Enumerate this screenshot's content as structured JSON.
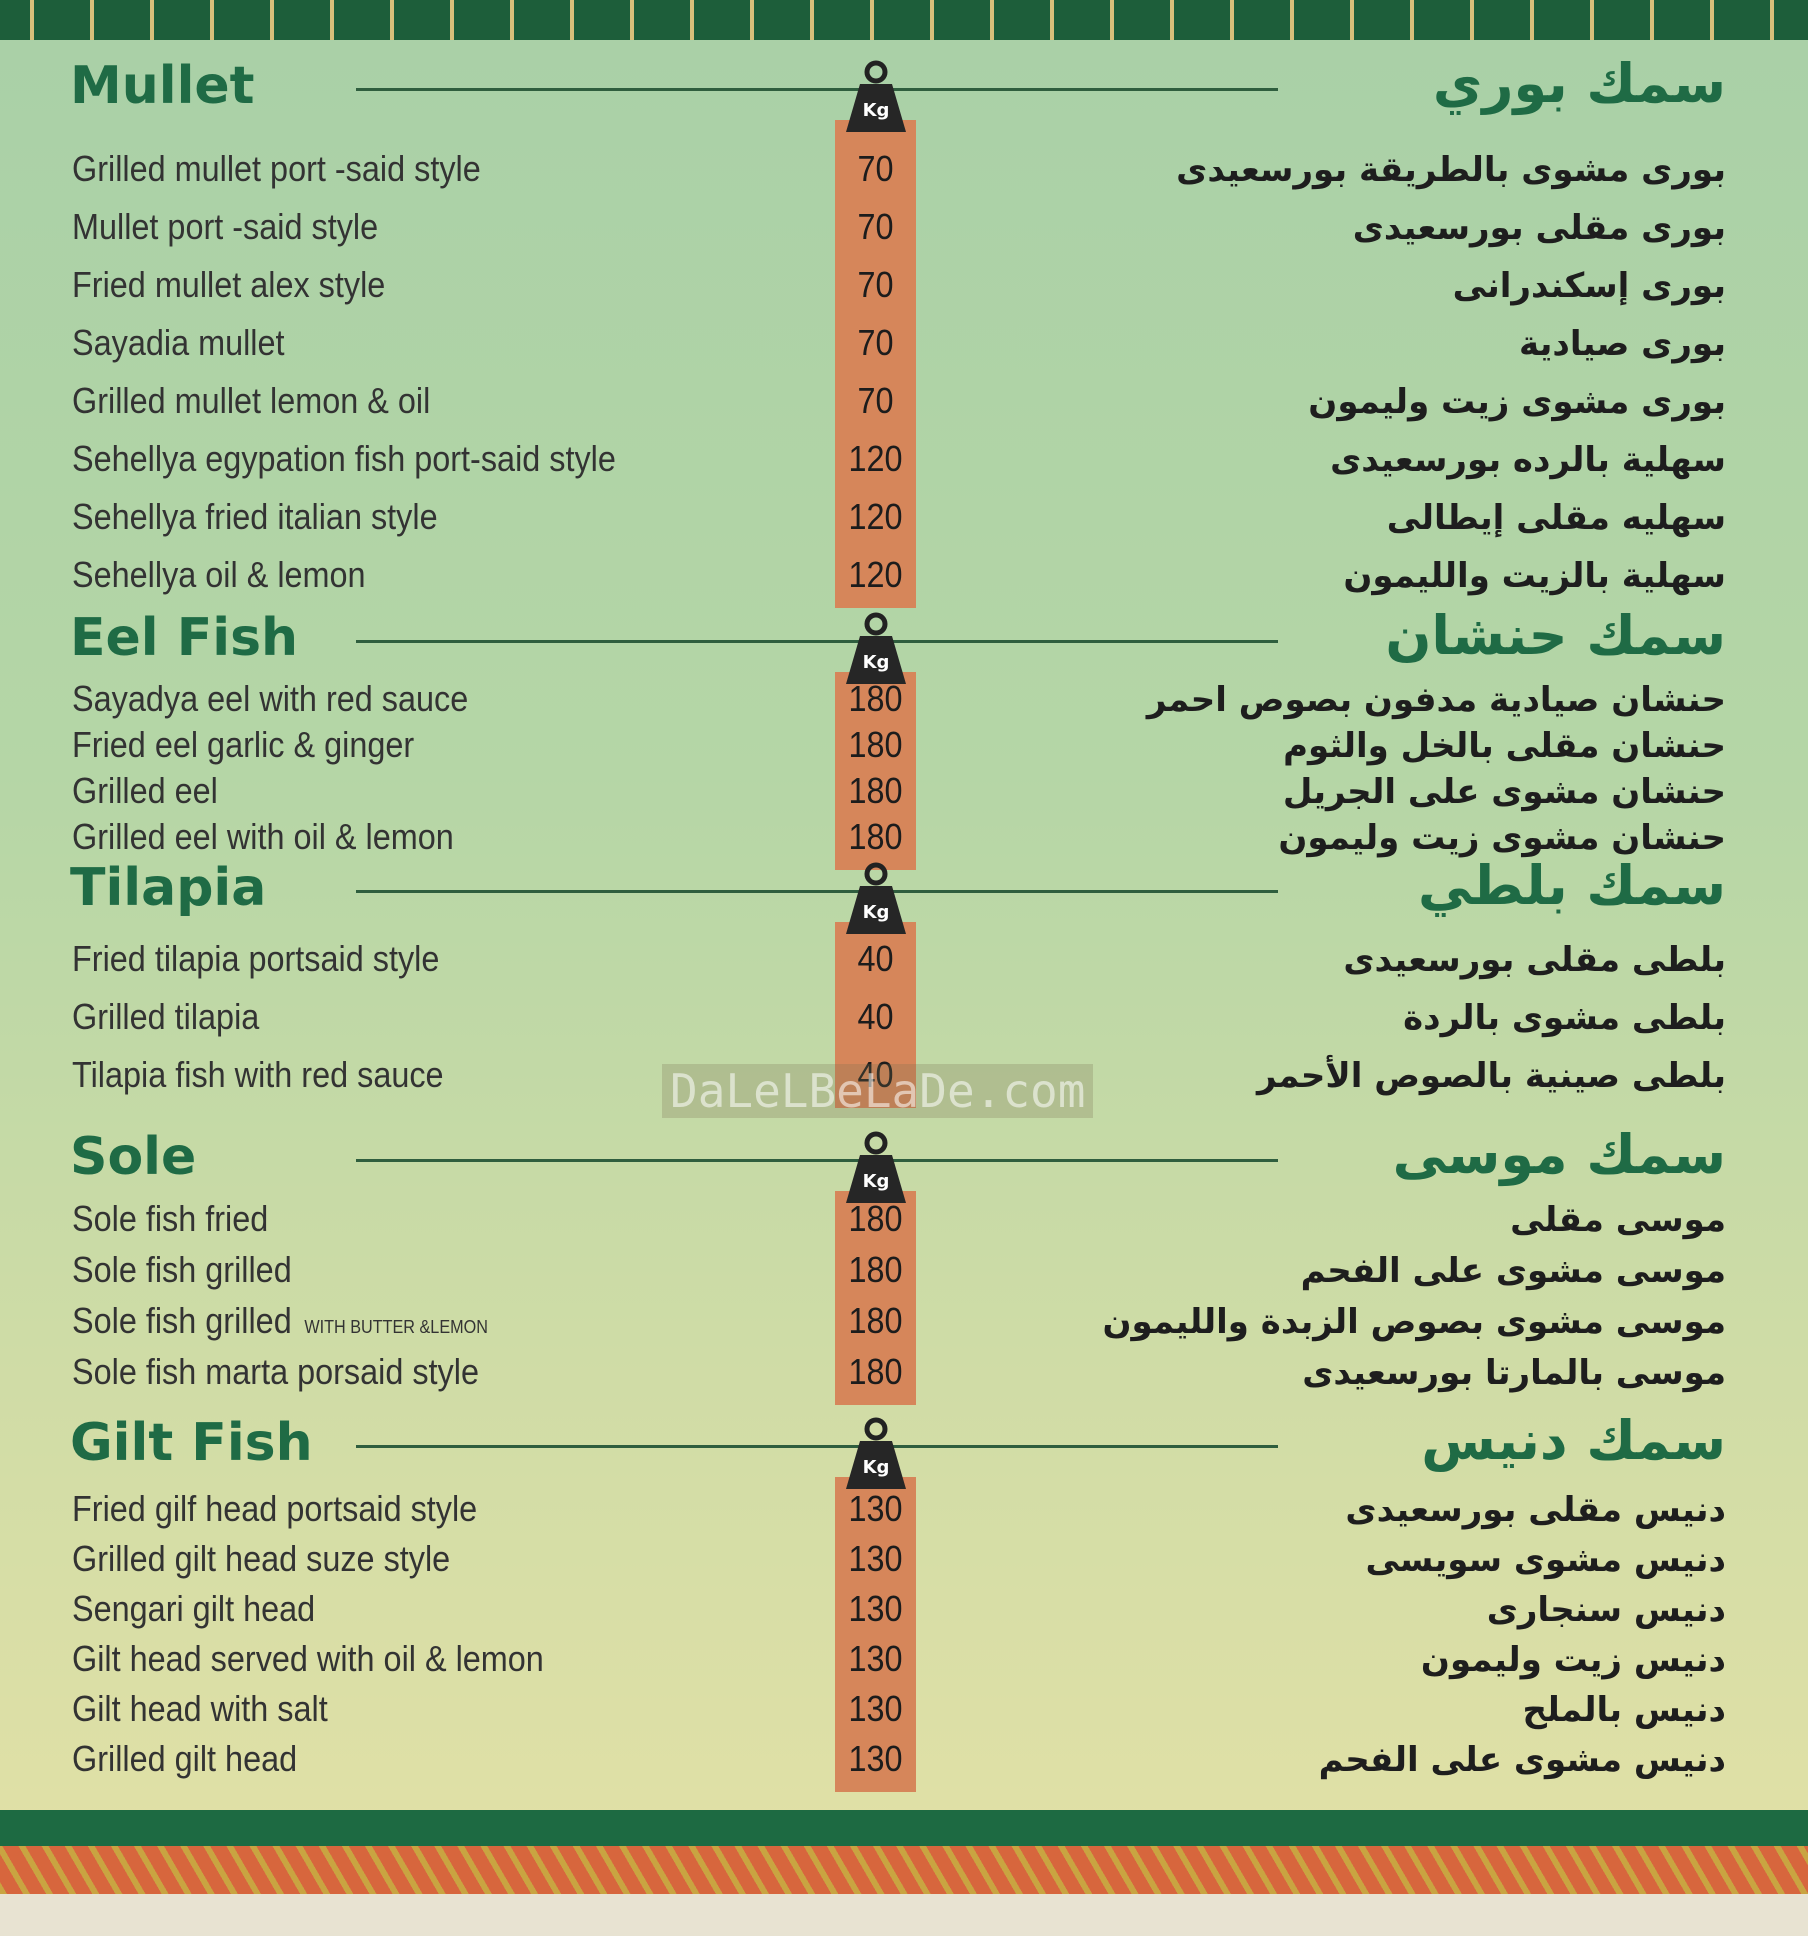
{
  "sections": [
    {
      "title_en": "Mullet",
      "title_ar": "سمك بوري",
      "unit": "Kg",
      "items": [
        {
          "name_en": "Grilled mullet port -said style",
          "price": 70,
          "name_ar": "بورى مشوى بالطريقة بورسعيدى"
        },
        {
          "name_en": "Mullet port -said style",
          "price": 70,
          "name_ar": "بورى مقلى بورسعيدى"
        },
        {
          "name_en": "Fried mullet alex style",
          "price": 70,
          "name_ar": "بورى إسكندرانى"
        },
        {
          "name_en": "Sayadia mullet",
          "price": 70,
          "name_ar": "بورى صيادية"
        },
        {
          "name_en": "Grilled mullet lemon & oil",
          "price": 70,
          "name_ar": "بورى مشوى زيت وليمون"
        },
        {
          "name_en": "Sehellya egypation fish port-said style",
          "price": 120,
          "name_ar": "سهلية بالرده بورسعيدى"
        },
        {
          "name_en": "Sehellya fried italian style",
          "price": 120,
          "name_ar": "سهليه مقلى إيطالى"
        },
        {
          "name_en": "Sehellya oil & lemon",
          "price": 120,
          "name_ar": "سهلية بالزيت والليمون"
        }
      ]
    },
    {
      "title_en": "Eel Fish",
      "title_ar": "سمك حنشان",
      "unit": "Kg",
      "items": [
        {
          "name_en": "Sayadya eel with red sauce",
          "price": 180,
          "name_ar": "حنشان صيادية مدفون بصوص احمر"
        },
        {
          "name_en": "Fried eel garlic & ginger",
          "price": 180,
          "name_ar": "حنشان مقلى بالخل والثوم"
        },
        {
          "name_en": "Grilled eel",
          "price": 180,
          "name_ar": "حنشان مشوى على الجريل"
        },
        {
          "name_en": "Grilled eel with oil & lemon",
          "price": 180,
          "name_ar": "حنشان مشوى زيت وليمون"
        }
      ]
    },
    {
      "title_en": "Tilapia",
      "title_ar": "سمك بلطي",
      "unit": "Kg",
      "items": [
        {
          "name_en": "Fried tilapia portsaid style",
          "price": 40,
          "name_ar": "بلطى مقلى بورسعيدى"
        },
        {
          "name_en": "Grilled tilapia",
          "price": 40,
          "name_ar": "بلطى مشوى بالردة"
        },
        {
          "name_en": "Tilapia fish with red sauce",
          "price": 40,
          "name_ar": "بلطى صينية بالصوص الأحمر"
        }
      ]
    },
    {
      "title_en": "Sole",
      "title_ar": "سمك موسى",
      "unit": "Kg",
      "items": [
        {
          "name_en": "Sole fish fried",
          "price": 180,
          "name_ar": "موسى مقلى"
        },
        {
          "name_en": "Sole fish grilled",
          "price": 180,
          "name_ar": "موسى مشوى على الفحم"
        },
        {
          "name_en": "Sole fish grilled",
          "note_en": "WITH BUTTER &LEMON",
          "price": 180,
          "name_ar": "موسى مشوى بصوص الزبدة والليمون"
        },
        {
          "name_en": "Sole fish marta porsaid style",
          "price": 180,
          "name_ar": "موسى بالمارتا بورسعيدى"
        }
      ]
    },
    {
      "title_en": "Gilt Fish",
      "title_ar": "سمك دنيس",
      "unit": "Kg",
      "items": [
        {
          "name_en": "Fried gilf head portsaid style",
          "price": 130,
          "name_ar": "دنيس مقلى بورسعيدى"
        },
        {
          "name_en": "Grilled gilt head suze style",
          "price": 130,
          "name_ar": "دنيس مشوى سويسى"
        },
        {
          "name_en": "Sengari gilt head",
          "price": 130,
          "name_ar": "دنيس سنجارى"
        },
        {
          "name_en": "Gilt head served with oil & lemon",
          "price": 130,
          "name_ar": "دنيس زيت وليمون"
        },
        {
          "name_en": "Gilt head with salt",
          "price": 130,
          "name_ar": "دنيس بالملح"
        },
        {
          "name_en": "Grilled gilt head",
          "price": 130,
          "name_ar": "دنيس مشوى على الفحم"
        }
      ]
    }
  ],
  "watermark": "DaLeLBeLaDe.com"
}
